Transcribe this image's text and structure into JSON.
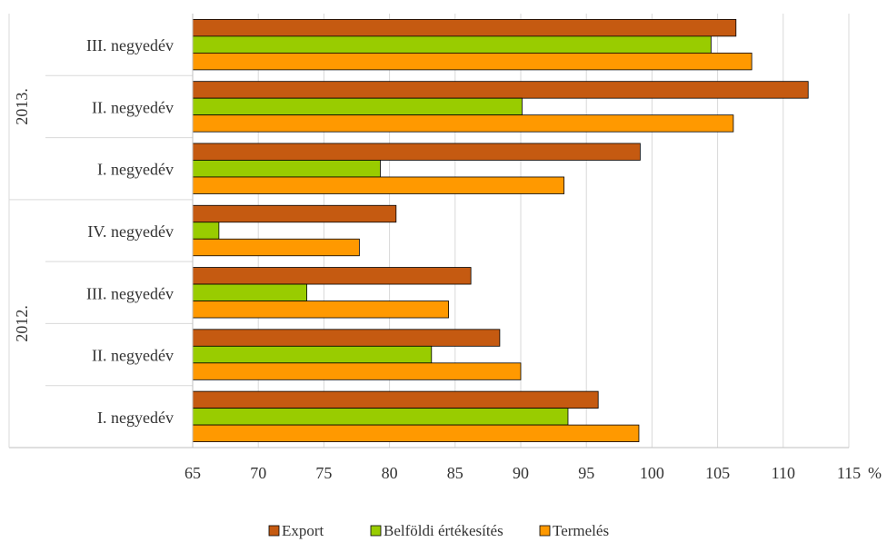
{
  "chart_data": {
    "type": "bar",
    "orientation": "horizontal",
    "x_unit": "%",
    "xlim": [
      65,
      115
    ],
    "x_ticks": [
      65,
      70,
      75,
      80,
      85,
      90,
      95,
      100,
      105,
      110,
      115
    ],
    "grid": "vertical",
    "legend_position": "bottom",
    "groups": [
      {
        "label": "2013.",
        "categories": [
          "III. negyedév",
          "II. negyedév",
          "I. negyedév"
        ]
      },
      {
        "label": "2012.",
        "categories": [
          "IV. negyedév",
          "III. negyedév",
          "II. negyedév",
          "I. negyedév"
        ]
      }
    ],
    "categories": [
      "III. negyedév",
      "II. negyedév",
      "I. negyedév",
      "IV. negyedév",
      "III. negyedév",
      "II. negyedév",
      "I. negyedév"
    ],
    "series": [
      {
        "name": "Export",
        "color": "#C55A11",
        "values": [
          106.4,
          111.9,
          99.1,
          80.5,
          86.2,
          88.4,
          95.9
        ]
      },
      {
        "name": "Belföldi értékesítés",
        "color": "#99CC00",
        "values": [
          104.5,
          90.1,
          79.3,
          67.0,
          73.7,
          83.2,
          93.6
        ]
      },
      {
        "name": "Termelés",
        "color": "#FF9900",
        "values": [
          107.6,
          106.2,
          93.3,
          77.7,
          84.5,
          90.0,
          99.0
        ]
      }
    ]
  }
}
